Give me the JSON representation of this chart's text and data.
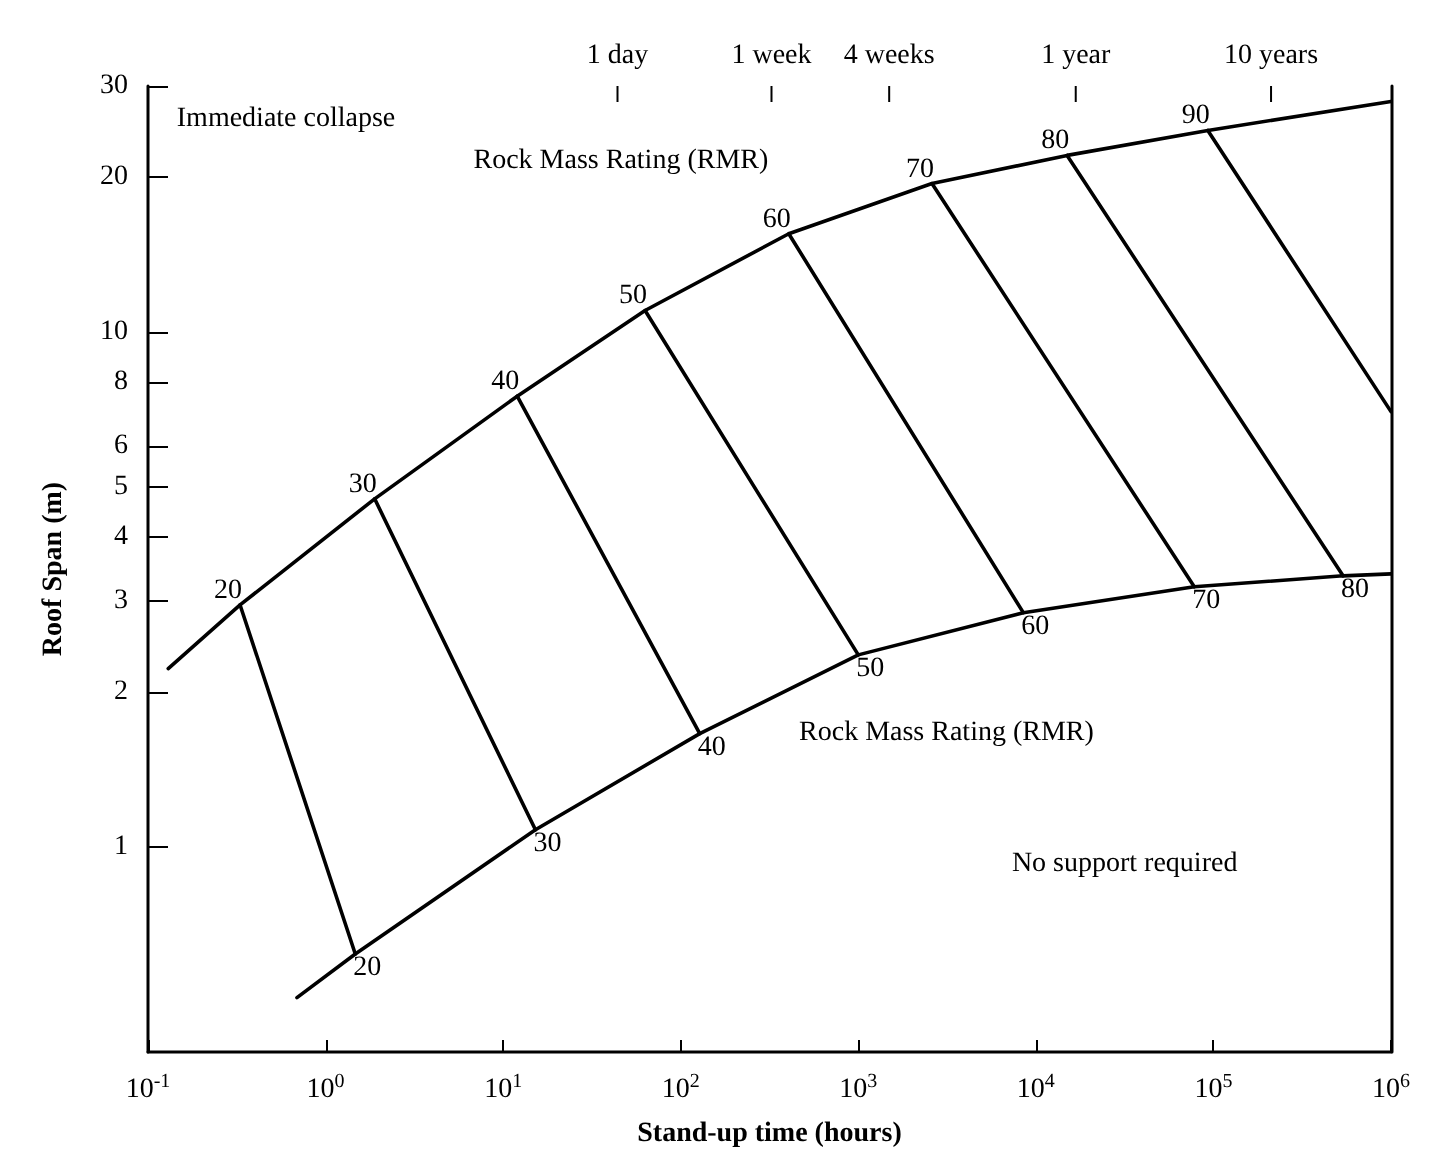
{
  "chart_data": {
    "type": "line",
    "xlabel": "Stand-up time (hours)",
    "ylabel": "Roof Span (m)",
    "log": "xy",
    "marker": "none",
    "line_style": "solid",
    "grid": false,
    "xlim": [
      0.1,
      1000000
    ],
    "ylim": [
      0.4,
      30
    ],
    "xticks": [
      {
        "value": 0.1,
        "label": "10$^{-1}$"
      },
      {
        "value": 1,
        "label": "10$^{0}$"
      },
      {
        "value": 10,
        "label": "10$^{1}$"
      },
      {
        "value": 100,
        "label": "10$^{2}$"
      },
      {
        "value": 1000,
        "label": "10$^{3}$"
      },
      {
        "value": 10000,
        "label": "10$^{4}$"
      },
      {
        "value": 100000,
        "label": "10$^{5}$"
      },
      {
        "value": 1000000,
        "label": "10$^{6}$"
      }
    ],
    "yticks": [
      1,
      2,
      3,
      4,
      5,
      6,
      8,
      10,
      20,
      30
    ],
    "series": [
      {
        "color": "#000000",
        "x": [
          0.13,
          0.33,
          1.89,
          12,
          63,
          406,
          2600,
          15000,
          93000,
          1000000
        ],
        "values": [
          2.22,
          2.95,
          4.74,
          7.5,
          11.0,
          15.5,
          19.4,
          22.0,
          24.6,
          28
        ]
      },
      {
        "color": "#000000",
        "x": [
          0.69,
          1.47,
          15.2,
          128,
          1000,
          8500,
          78000,
          537000,
          1000000
        ],
        "values": [
          0.51,
          0.62,
          1.08,
          1.66,
          2.36,
          2.85,
          3.2,
          3.36,
          3.39
        ]
      },
      {
        "color": "#000000",
        "x": [
          0.33,
          1.47
        ],
        "values": [
          2.95,
          0.62
        ]
      },
      {
        "color": "#000000",
        "x": [
          1.89,
          15.2
        ],
        "values": [
          4.74,
          1.08
        ]
      },
      {
        "color": "#000000",
        "x": [
          12,
          128
        ],
        "values": [
          7.5,
          1.66
        ]
      },
      {
        "color": "#000000",
        "x": [
          63,
          1000
        ],
        "values": [
          11.0,
          2.36
        ]
      },
      {
        "color": "#000000",
        "x": [
          406,
          8500
        ],
        "values": [
          15.5,
          2.85
        ]
      },
      {
        "color": "#000000",
        "x": [
          2600,
          78000
        ],
        "values": [
          19.4,
          3.2
        ]
      },
      {
        "color": "#000000",
        "x": [
          15000,
          537000
        ],
        "values": [
          22.0,
          3.36
        ]
      },
      {
        "color": "#000000",
        "x": [
          93000,
          1000000
        ],
        "values": [
          24.6,
          7.0
        ]
      }
    ],
    "annotations": [
      "1 day",
      "1 week",
      "4 weeks",
      "1 year",
      "10 years",
      "Immediate collapse",
      "Rock Mass Rating (RMR)",
      "Rock Mass Rating (RMR)",
      "No support required",
      {
        "text": "20",
        "x": 0.33,
        "y": 2.95
      },
      {
        "text": "30",
        "x": 1.89,
        "y": 4.74
      },
      {
        "text": "40",
        "x": 12,
        "y": 7.5
      },
      {
        "text": "50",
        "x": 63,
        "y": 11.0
      },
      {
        "text": "60",
        "x": 406,
        "y": 15.5
      },
      {
        "text": "70",
        "x": 2600,
        "y": 19.4
      },
      {
        "text": "80",
        "x": 15000,
        "y": 22.0
      },
      {
        "text": "90",
        "x": 93000,
        "y": 24.6
      },
      {
        "text": "20",
        "x": 1.47,
        "y": 0.62
      },
      {
        "text": "30",
        "x": 15.2,
        "y": 1.08
      },
      {
        "text": "40",
        "x": 128,
        "y": 1.66
      },
      {
        "text": "50",
        "x": 1000,
        "y": 2.36
      },
      {
        "text": "60",
        "x": 8500,
        "y": 2.85
      },
      {
        "text": "70",
        "x": 78000,
        "y": 3.2
      },
      {
        "text": "80",
        "x": 537000,
        "y": 3.36
      }
    ]
  }
}
